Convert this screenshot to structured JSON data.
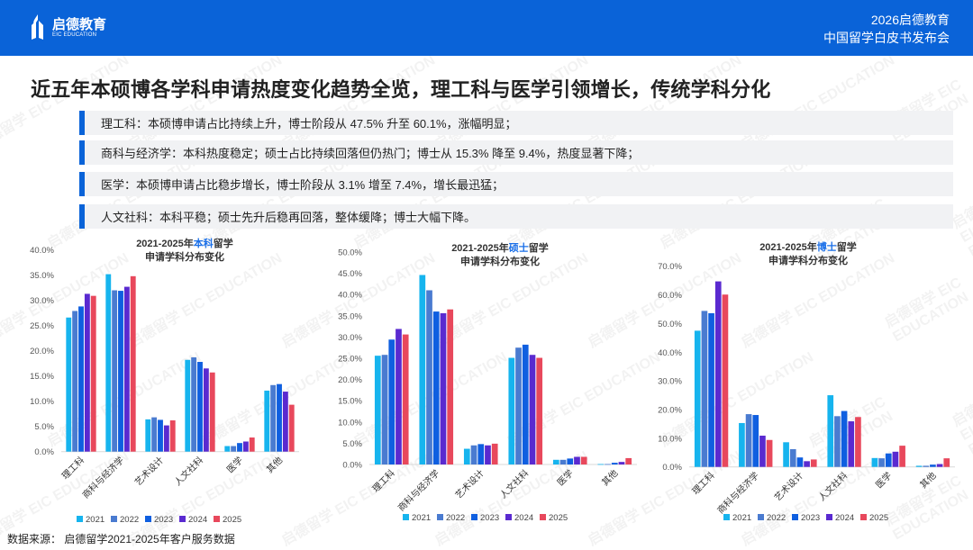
{
  "header": {
    "logo_text": "启德教育",
    "logo_sub": "EIC EDUCATION",
    "event_line1": "2026启德教育",
    "event_line2": "中国留学白皮书发布会"
  },
  "title": "近五年本硕博各学科申请热度变化趋势全览，理工科与医学引领增长，传统学科分化",
  "bullets": [
    "理工科：本硕博申请占比持续上升，博士阶段从 47.5% 升至 60.1%，涨幅明显；",
    "商科与经济学：本科热度稳定；硕士占比持续回落但仍热门；博士从 15.3% 降至 9.4%，热度显著下降；",
    "医学：本硕博申请占比稳步增长，博士阶段从 3.1% 增至 7.4%，增长最迅猛；",
    "人文社科：本科平稳；硕士先升后稳再回落，整体缓降；博士大幅下降。"
  ],
  "source": "数据来源：  启德留学2021-2025年客户服务数据",
  "watermark": "启德留学 EIC EDUCATION",
  "colors": {
    "header": "#0a63d8",
    "2021": "#16b4ee",
    "2022": "#4a7bd0",
    "2023": "#0f5fe0",
    "2024": "#5a2ad0",
    "2025": "#e8485c"
  },
  "chart_data": [
    {
      "type": "bar",
      "title_pre": "2021-2025年",
      "title_hl": "本科",
      "title_post": "留学",
      "title_line2": "申请学科分布变化",
      "categories": [
        "理工科",
        "商科与经济学",
        "艺术设计",
        "人文社科",
        "医学",
        "其他"
      ],
      "ylim": [
        0,
        40
      ],
      "yticks": [
        "0.0%",
        "5.0%",
        "10.0%",
        "15.0%",
        "20.0%",
        "25.0%",
        "30.0%",
        "35.0%",
        "40.0%"
      ],
      "legend": "bottom",
      "series": [
        {
          "name": "2021",
          "values": [
            26.6,
            35.2,
            6.4,
            18.2,
            1.1,
            12.1
          ]
        },
        {
          "name": "2022",
          "values": [
            27.9,
            32.0,
            6.8,
            18.7,
            1.1,
            13.2
          ]
        },
        {
          "name": "2023",
          "values": [
            28.8,
            31.9,
            6.3,
            17.8,
            1.7,
            13.4
          ]
        },
        {
          "name": "2024",
          "values": [
            31.3,
            32.7,
            5.2,
            16.5,
            2.0,
            11.9
          ]
        },
        {
          "name": "2025",
          "values": [
            30.9,
            34.8,
            6.2,
            15.7,
            2.8,
            9.3
          ]
        }
      ]
    },
    {
      "type": "bar",
      "title_pre": "2021-2025年",
      "title_hl": "硕士",
      "title_post": "留学",
      "title_line2": "申请学科分布变化",
      "categories": [
        "理工科",
        "商科与经济学",
        "艺术设计",
        "人文社科",
        "医学",
        "其他"
      ],
      "ylim": [
        0,
        50
      ],
      "yticks": [
        "0.0%",
        "5.0%",
        "10.0%",
        "15.0%",
        "20.0%",
        "25.0%",
        "30.0%",
        "35.0%",
        "40.0%",
        "45.0%",
        "50.0%"
      ],
      "legend": "bottom",
      "series": [
        {
          "name": "2021",
          "values": [
            25.6,
            44.6,
            3.7,
            25.1,
            1.1,
            0.1
          ]
        },
        {
          "name": "2022",
          "values": [
            25.8,
            41.0,
            4.5,
            27.5,
            1.1,
            0.1
          ]
        },
        {
          "name": "2023",
          "values": [
            29.4,
            36.0,
            4.8,
            28.2,
            1.4,
            0.4
          ]
        },
        {
          "name": "2024",
          "values": [
            31.9,
            35.6,
            4.5,
            25.8,
            1.8,
            0.6
          ]
        },
        {
          "name": "2025",
          "values": [
            30.6,
            36.5,
            4.9,
            25.1,
            1.8,
            1.5
          ]
        }
      ]
    },
    {
      "type": "bar",
      "title_pre": "2021-2025年",
      "title_hl": "博士",
      "title_post": "留学",
      "title_line2": "申请学科分布变化",
      "categories": [
        "理工科",
        "商科与经济学",
        "艺术设计",
        "人文社科",
        "医学",
        "其他"
      ],
      "ylim": [
        0,
        70
      ],
      "yticks": [
        "0.0%",
        "10.0%",
        "20.0%",
        "30.0%",
        "40.0%",
        "50.0%",
        "60.0%",
        "70.0%"
      ],
      "legend": "bottom",
      "series": [
        {
          "name": "2021",
          "values": [
            47.5,
            15.3,
            8.6,
            25.0,
            3.1,
            0.4
          ]
        },
        {
          "name": "2022",
          "values": [
            54.4,
            18.4,
            6.2,
            17.7,
            3.0,
            0.4
          ]
        },
        {
          "name": "2023",
          "values": [
            53.6,
            18.1,
            3.3,
            19.5,
            4.7,
            0.8
          ]
        },
        {
          "name": "2024",
          "values": [
            64.7,
            10.9,
            2.0,
            15.9,
            5.3,
            1.0
          ]
        },
        {
          "name": "2025",
          "values": [
            60.1,
            9.4,
            2.6,
            17.4,
            7.4,
            3.0
          ]
        }
      ]
    }
  ]
}
